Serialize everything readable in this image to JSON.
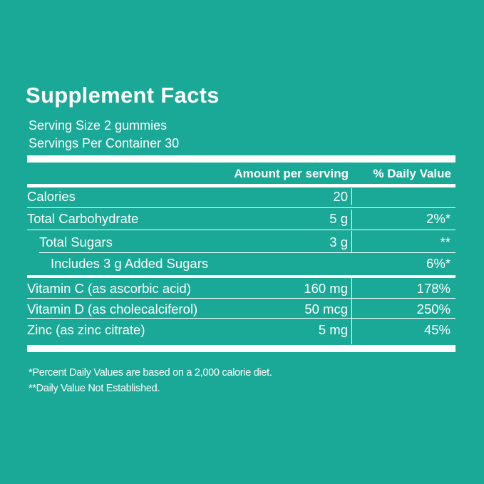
{
  "title": "Supplement Facts",
  "serving_size": "Serving Size 2 gummies",
  "servings_per_container": "Servings Per Container 30",
  "header": {
    "amount": "Amount per serving",
    "daily_value": "% Daily Value"
  },
  "rows": [
    {
      "label": "Calories",
      "amount": "20",
      "dv": ""
    },
    {
      "label": "Total Carbohydrate",
      "amount": "5 g",
      "dv": "2%*"
    },
    {
      "label": "Total Sugars",
      "amount": "3 g",
      "dv": "**"
    },
    {
      "label": "Includes 3 g Added Sugars",
      "amount": "",
      "dv": "6%*"
    },
    {
      "label": "Vitamin C (as ascorbic acid)",
      "amount": "160 mg",
      "dv": "178%"
    },
    {
      "label": "Vitamin D (as cholecalciferol)",
      "amount": "50 mcg",
      "dv": "250%"
    },
    {
      "label": "Zinc (as zinc citrate)",
      "amount": "5 mg",
      "dv": "45%"
    }
  ],
  "footnotes": [
    "*Percent Daily Values are based on a 2,000 calorie diet.",
    "**Daily Value Not Established."
  ],
  "colors": {
    "background": "#1aa897",
    "text": "#ffffff"
  }
}
